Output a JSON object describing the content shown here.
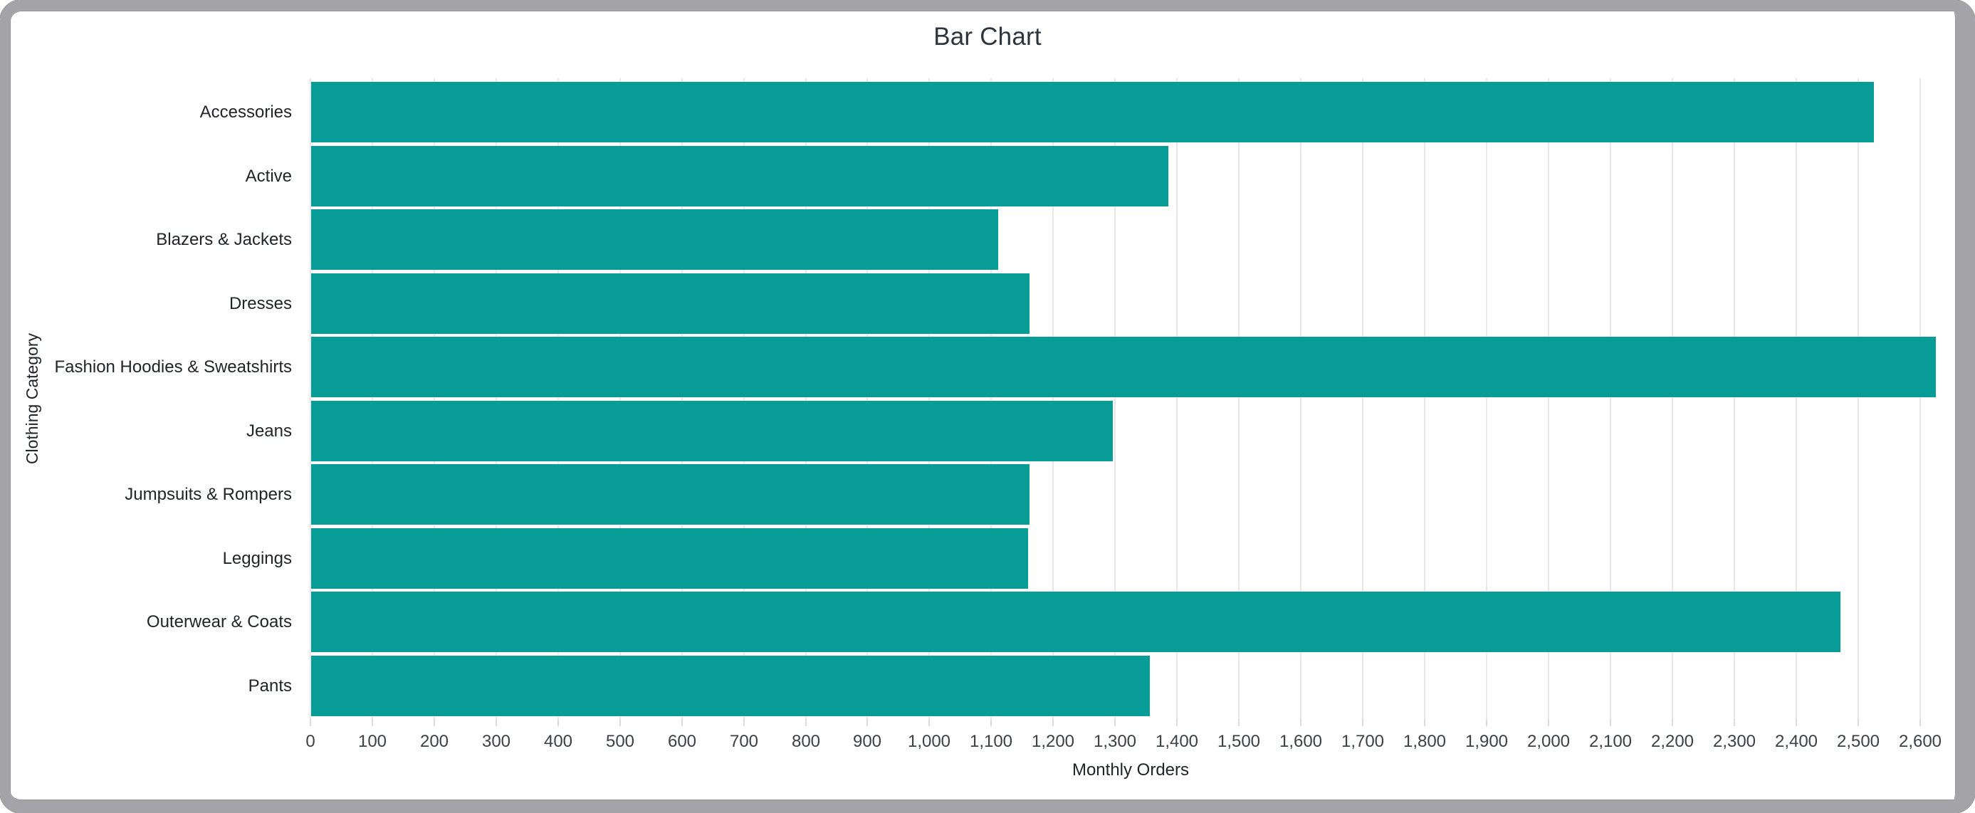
{
  "card": {
    "title": "Bar Chart"
  },
  "chart_data": {
    "type": "bar",
    "orientation": "horizontal",
    "title": "Bar Chart",
    "xlabel": "Monthly Orders",
    "ylabel": "Clothing Category",
    "categories": [
      "Accessories",
      "Active",
      "Blazers & Jackets",
      "Dresses",
      "Fashion Hoodies & Sweatshirts",
      "Jeans",
      "Jumpsuits & Rompers",
      "Leggings",
      "Outerwear & Coats",
      "Pants"
    ],
    "values": [
      2525,
      1385,
      1110,
      1160,
      2625,
      1295,
      1160,
      1158,
      2470,
      1355
    ],
    "xlim": [
      0,
      2650
    ],
    "grid": true,
    "legend": "none",
    "x_ticks": [
      {
        "value": 0,
        "label": "0"
      },
      {
        "value": 100,
        "label": "100"
      },
      {
        "value": 200,
        "label": "200"
      },
      {
        "value": 300,
        "label": "300"
      },
      {
        "value": 400,
        "label": "400"
      },
      {
        "value": 500,
        "label": "500"
      },
      {
        "value": 600,
        "label": "600"
      },
      {
        "value": 700,
        "label": "700"
      },
      {
        "value": 800,
        "label": "800"
      },
      {
        "value": 900,
        "label": "900"
      },
      {
        "value": 1000,
        "label": "1,000"
      },
      {
        "value": 1100,
        "label": "1,100"
      },
      {
        "value": 1200,
        "label": "1,200"
      },
      {
        "value": 1300,
        "label": "1,300"
      },
      {
        "value": 1400,
        "label": "1,400"
      },
      {
        "value": 1500,
        "label": "1,500"
      },
      {
        "value": 1600,
        "label": "1,600"
      },
      {
        "value": 1700,
        "label": "1,700"
      },
      {
        "value": 1800,
        "label": "1,800"
      },
      {
        "value": 1900,
        "label": "1,900"
      },
      {
        "value": 2000,
        "label": "2,000"
      },
      {
        "value": 2100,
        "label": "2,100"
      },
      {
        "value": 2200,
        "label": "2,200"
      },
      {
        "value": 2300,
        "label": "2,300"
      },
      {
        "value": 2400,
        "label": "2,400"
      },
      {
        "value": 2500,
        "label": "2,500"
      },
      {
        "value": 2600,
        "label": "2,600"
      }
    ],
    "colors": {
      "bar": "#089c96",
      "gridline": "#e8e8eb",
      "title_text": "#2e343b",
      "label_text": "#212429",
      "frame_border": "#a3a3a8"
    }
  }
}
